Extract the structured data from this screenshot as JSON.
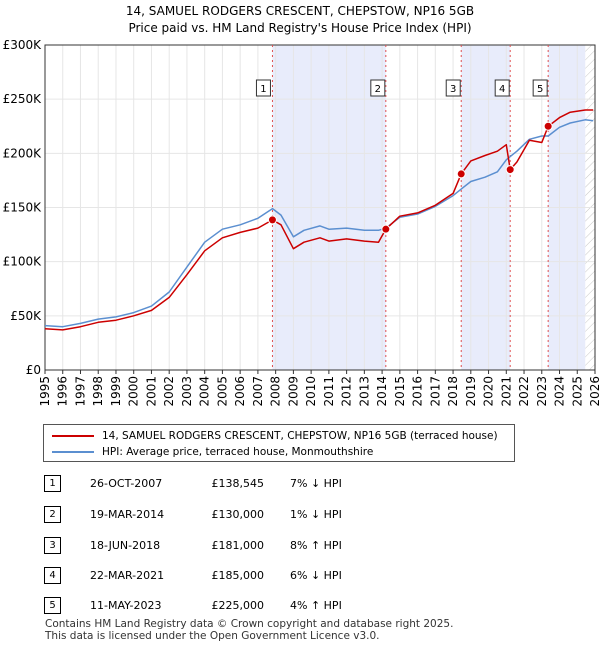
{
  "chart_data": {
    "type": "line",
    "title": "14, SAMUEL RODGERS CRESCENT, CHEPSTOW, NP16 5GB",
    "subtitle": "Price paid vs. HM Land Registry's House Price Index (HPI)",
    "xlim": [
      1995,
      2026
    ],
    "ylim": [
      0,
      300000
    ],
    "x_ticks": [
      "1995",
      "1996",
      "1997",
      "1998",
      "1999",
      "2000",
      "2001",
      "2002",
      "2003",
      "2004",
      "2005",
      "2006",
      "2007",
      "2008",
      "2009",
      "2010",
      "2011",
      "2012",
      "2013",
      "2014",
      "2015",
      "2016",
      "2017",
      "2018",
      "2019",
      "2020",
      "2021",
      "2022",
      "2023",
      "2024",
      "2025",
      "2026"
    ],
    "y_ticks": [
      {
        "value": 0,
        "label": "£0"
      },
      {
        "value": 50000,
        "label": "£50K"
      },
      {
        "value": 100000,
        "label": "£100K"
      },
      {
        "value": 150000,
        "label": "£150K"
      },
      {
        "value": 200000,
        "label": "£200K"
      },
      {
        "value": 250000,
        "label": "£250K"
      },
      {
        "value": 300000,
        "label": "£300K"
      }
    ],
    "shaded_periods": [
      [
        2007.82,
        2014.21
      ],
      [
        2018.46,
        2021.22
      ],
      [
        2023.36,
        2025.45
      ]
    ],
    "hatched_from": 2025.45,
    "series": [
      {
        "name": "14, SAMUEL RODGERS CRESCENT, CHEPSTOW, NP16 5GB (terraced house)",
        "color": "#cc0000",
        "points": [
          [
            1995.0,
            38000
          ],
          [
            1996.0,
            37000
          ],
          [
            1997.0,
            40000
          ],
          [
            1998.0,
            44000
          ],
          [
            1999.0,
            46000
          ],
          [
            2000.0,
            50000
          ],
          [
            2001.0,
            55000
          ],
          [
            2002.0,
            67000
          ],
          [
            2003.0,
            88000
          ],
          [
            2004.0,
            110000
          ],
          [
            2005.0,
            122000
          ],
          [
            2006.0,
            127000
          ],
          [
            2007.0,
            131000
          ],
          [
            2007.82,
            138545
          ],
          [
            2008.3,
            134000
          ],
          [
            2009.0,
            112000
          ],
          [
            2009.6,
            118000
          ],
          [
            2010.5,
            122000
          ],
          [
            2011.0,
            119000
          ],
          [
            2012.0,
            121000
          ],
          [
            2013.0,
            119000
          ],
          [
            2013.8,
            118000
          ],
          [
            2014.21,
            130000
          ],
          [
            2015.0,
            142000
          ],
          [
            2016.0,
            145000
          ],
          [
            2017.0,
            152000
          ],
          [
            2018.0,
            163000
          ],
          [
            2018.46,
            181000
          ],
          [
            2019.0,
            193000
          ],
          [
            2019.8,
            198000
          ],
          [
            2020.5,
            202000
          ],
          [
            2021.0,
            208000
          ],
          [
            2021.22,
            185000
          ],
          [
            2021.6,
            192000
          ],
          [
            2022.3,
            212000
          ],
          [
            2023.0,
            210000
          ],
          [
            2023.36,
            225000
          ],
          [
            2024.0,
            233000
          ],
          [
            2024.6,
            238000
          ],
          [
            2025.45,
            240000
          ],
          [
            2025.9,
            240000
          ]
        ]
      },
      {
        "name": "HPI: Average price, terraced house, Monmouthshire",
        "color": "#5b8fd0",
        "points": [
          [
            1995.0,
            41000
          ],
          [
            1996.0,
            40000
          ],
          [
            1997.0,
            43000
          ],
          [
            1998.0,
            47000
          ],
          [
            1999.0,
            49000
          ],
          [
            2000.0,
            53000
          ],
          [
            2001.0,
            59000
          ],
          [
            2002.0,
            72000
          ],
          [
            2003.0,
            95000
          ],
          [
            2004.0,
            118000
          ],
          [
            2005.0,
            130000
          ],
          [
            2006.0,
            134000
          ],
          [
            2007.0,
            140000
          ],
          [
            2007.82,
            149000
          ],
          [
            2008.3,
            143000
          ],
          [
            2009.0,
            123000
          ],
          [
            2009.6,
            129000
          ],
          [
            2010.5,
            133000
          ],
          [
            2011.0,
            130000
          ],
          [
            2012.0,
            131000
          ],
          [
            2013.0,
            129000
          ],
          [
            2013.8,
            129000
          ],
          [
            2014.21,
            131000
          ],
          [
            2015.0,
            141000
          ],
          [
            2016.0,
            144000
          ],
          [
            2017.0,
            151000
          ],
          [
            2018.0,
            161000
          ],
          [
            2018.46,
            167000
          ],
          [
            2019.0,
            174000
          ],
          [
            2019.8,
            178000
          ],
          [
            2020.5,
            183000
          ],
          [
            2021.0,
            194000
          ],
          [
            2021.22,
            197000
          ],
          [
            2021.6,
            202000
          ],
          [
            2022.3,
            213000
          ],
          [
            2023.0,
            216000
          ],
          [
            2023.36,
            216000
          ],
          [
            2024.0,
            224000
          ],
          [
            2024.6,
            228000
          ],
          [
            2025.45,
            231000
          ],
          [
            2025.9,
            230000
          ]
        ]
      }
    ],
    "markers": [
      {
        "label": "1",
        "x": 2007.82,
        "y": 138545
      },
      {
        "label": "2",
        "x": 2014.21,
        "y": 130000
      },
      {
        "label": "3",
        "x": 2018.46,
        "y": 181000
      },
      {
        "label": "4",
        "x": 2021.22,
        "y": 185000
      },
      {
        "label": "5",
        "x": 2023.36,
        "y": 225000
      }
    ]
  },
  "legend": {
    "property_label": "14, SAMUEL RODGERS CRESCENT, CHEPSTOW, NP16 5GB (terraced house)",
    "hpi_label": "HPI: Average price, terraced house, Monmouthshire"
  },
  "sales": [
    {
      "num": "1",
      "date": "26-OCT-2007",
      "price": "£138,545",
      "hpi": "7% ↓ HPI"
    },
    {
      "num": "2",
      "date": "19-MAR-2014",
      "price": "£130,000",
      "hpi": "1% ↓ HPI"
    },
    {
      "num": "3",
      "date": "18-JUN-2018",
      "price": "£181,000",
      "hpi": "8% ↑ HPI"
    },
    {
      "num": "4",
      "date": "22-MAR-2021",
      "price": "£185,000",
      "hpi": "6% ↓ HPI"
    },
    {
      "num": "5",
      "date": "11-MAY-2023",
      "price": "£225,000",
      "hpi": "4% ↑ HPI"
    }
  ],
  "footer": {
    "line1": "Contains HM Land Registry data © Crown copyright and database right 2025.",
    "line2": "This data is licensed under the Open Government Licence v3.0."
  }
}
